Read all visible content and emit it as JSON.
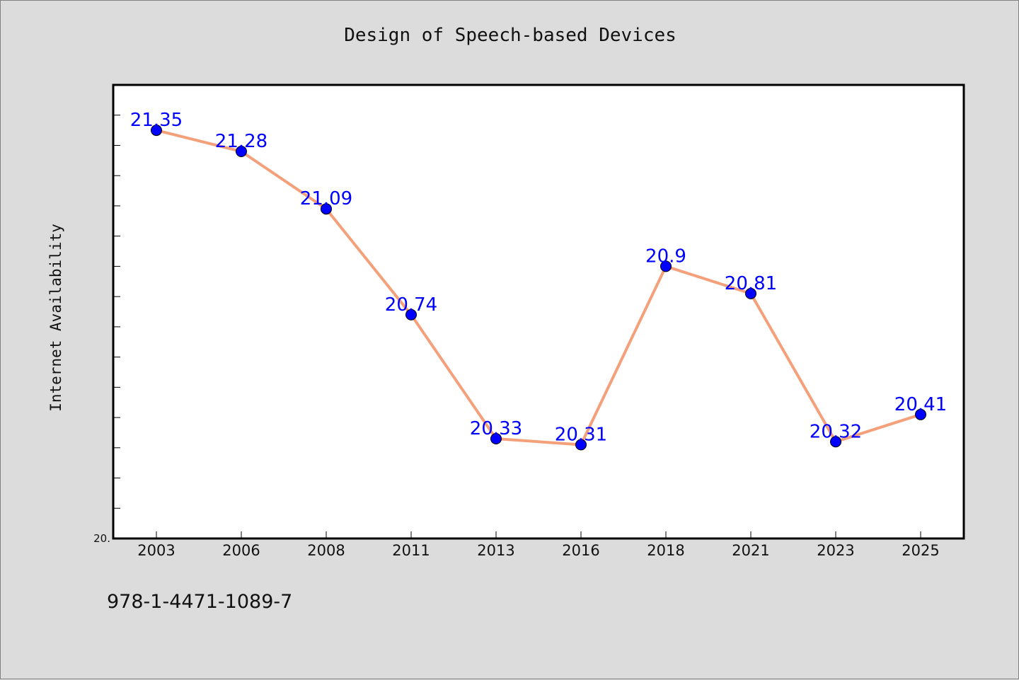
{
  "chart_data": {
    "type": "line",
    "title": "Design of Speech-based Devices",
    "xlabel": "",
    "ylabel": "Internet Availability",
    "categories": [
      "2003",
      "2006",
      "2008",
      "2011",
      "2013",
      "2016",
      "2018",
      "2021",
      "2023",
      "2025"
    ],
    "series": [
      {
        "values": [
          21.35,
          21.28,
          21.09,
          20.74,
          20.33,
          20.31,
          20.9,
          20.81,
          20.32,
          20.41
        ],
        "labels": [
          "21.35",
          "21.28",
          "21.09",
          "20.74",
          "20.33",
          "20.31",
          "20.9",
          "20.81",
          "20.32",
          "20.41"
        ]
      }
    ],
    "y_tick_labels": [
      "20."
    ],
    "ylim": [
      20.0,
      21.5
    ],
    "grid": false,
    "line_color": "#f4a07a",
    "marker_color": "#0000ff",
    "label_color": "#0000ff"
  },
  "footnote": "978-1-4471-1089-7"
}
